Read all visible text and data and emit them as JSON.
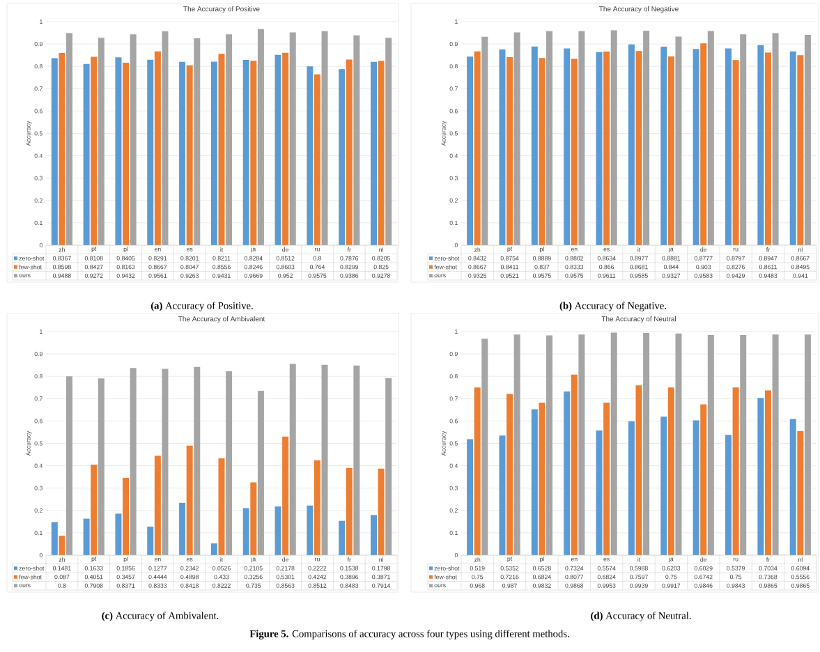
{
  "chart_data": [
    {
      "type": "bar",
      "title": "The Accuracy of Positive",
      "ylabel": "Accuracy",
      "categories": [
        "zh",
        "pt",
        "pl",
        "en",
        "es",
        "it",
        "ja",
        "de",
        "ru",
        "fr",
        "nl"
      ],
      "series": [
        {
          "name": "zero-shot",
          "color": "#5b9bd5",
          "values": [
            0.8367,
            0.8108,
            0.8405,
            0.8291,
            0.8201,
            0.8211,
            0.8284,
            0.8512,
            0.8,
            0.7876,
            0.8205
          ]
        },
        {
          "name": "few-shot",
          "color": "#ed7d31",
          "values": [
            0.8598,
            0.8427,
            0.8163,
            0.8667,
            0.8047,
            0.8556,
            0.8246,
            0.8603,
            0.764,
            0.8299,
            0.825
          ]
        },
        {
          "name": "ours",
          "color": "#a5a5a5",
          "values": [
            0.9488,
            0.9272,
            0.9432,
            0.9561,
            0.9263,
            0.9431,
            0.9669,
            0.952,
            0.9575,
            0.9386,
            0.9278
          ]
        }
      ],
      "ylim": [
        0,
        1
      ],
      "yticks": [
        0,
        0.1,
        0.2,
        0.3,
        0.4,
        0.5,
        0.6,
        0.7,
        0.8,
        0.9,
        1
      ],
      "grid": "y",
      "legend": "bottom",
      "data_labels": true,
      "annotations": [
        "**(a)** Accuracy of Positive."
      ]
    },
    {
      "type": "bar",
      "title": "The Accuracy of Negative",
      "ylabel": "Accuracy",
      "categories": [
        "zh",
        "pt",
        "pl",
        "en",
        "es",
        "it",
        "ja",
        "de",
        "ru",
        "fr",
        "nl"
      ],
      "series": [
        {
          "name": "zero-shot",
          "color": "#5b9bd5",
          "values": [
            0.8432,
            0.8754,
            0.8889,
            0.8802,
            0.8634,
            0.8977,
            0.8881,
            0.8777,
            0.8797,
            0.8947,
            0.8667
          ]
        },
        {
          "name": "few-shot",
          "color": "#ed7d31",
          "values": [
            0.8667,
            0.8411,
            0.837,
            0.8333,
            0.866,
            0.8681,
            0.844,
            0.903,
            0.8276,
            0.8611,
            0.8495
          ]
        },
        {
          "name": "ours",
          "color": "#a5a5a5",
          "values": [
            0.9325,
            0.9521,
            0.9575,
            0.9575,
            0.9611,
            0.9585,
            0.9327,
            0.9583,
            0.9429,
            0.9483,
            0.941
          ]
        }
      ],
      "ylim": [
        0,
        1
      ],
      "yticks": [
        0,
        0.1,
        0.2,
        0.3,
        0.4,
        0.5,
        0.6,
        0.7,
        0.8,
        0.9,
        1
      ],
      "grid": "y",
      "legend": "bottom",
      "data_labels": true,
      "annotations": [
        "**(b)** Accuracy of Negative."
      ]
    },
    {
      "type": "bar",
      "title": "The Accuracy of Ambivalent",
      "ylabel": "Accuracy",
      "categories": [
        "zh",
        "pt",
        "pl",
        "en",
        "es",
        "it",
        "ja",
        "de",
        "ru",
        "fr",
        "nl"
      ],
      "series": [
        {
          "name": "zero-shot",
          "color": "#5b9bd5",
          "values": [
            0.1481,
            0.1633,
            0.1856,
            0.1277,
            0.2342,
            0.0526,
            0.2105,
            0.2178,
            0.2222,
            0.1538,
            0.1798
          ]
        },
        {
          "name": "few-shot",
          "color": "#ed7d31",
          "values": [
            0.087,
            0.4051,
            0.3457,
            0.4444,
            0.4898,
            0.433,
            0.3256,
            0.5301,
            0.4242,
            0.3896,
            0.3871
          ]
        },
        {
          "name": "ours",
          "color": "#a5a5a5",
          "values": [
            0.8,
            0.7908,
            0.8371,
            0.8333,
            0.8418,
            0.8222,
            0.735,
            0.8563,
            0.8512,
            0.8483,
            0.7914
          ]
        }
      ],
      "ylim": [
        0,
        1
      ],
      "yticks": [
        0,
        0.1,
        0.2,
        0.3,
        0.4,
        0.5,
        0.6,
        0.7,
        0.8,
        0.9,
        1
      ],
      "grid": "y",
      "legend": "bottom",
      "data_labels": true,
      "annotations": [
        "**(c)** Accuracy of Ambivalent."
      ]
    },
    {
      "type": "bar",
      "title": "The Accuracy of Neutral",
      "ylabel": "Accuracy",
      "categories": [
        "zh",
        "pt",
        "pl",
        "en",
        "es",
        "it",
        "ja",
        "de",
        "ru",
        "fr",
        "nl"
      ],
      "series": [
        {
          "name": "zero-shot",
          "color": "#5b9bd5",
          "values": [
            0.519,
            0.5352,
            0.6528,
            0.7324,
            0.5574,
            0.5988,
            0.6203,
            0.6029,
            0.5379,
            0.7034,
            0.6094
          ]
        },
        {
          "name": "few-shot",
          "color": "#ed7d31",
          "values": [
            0.75,
            0.7216,
            0.6824,
            0.8077,
            0.6824,
            0.7597,
            0.75,
            0.6742,
            0.75,
            0.7368,
            0.5556
          ]
        },
        {
          "name": "ours",
          "color": "#a5a5a5",
          "values": [
            0.968,
            0.987,
            0.9832,
            0.9868,
            0.9953,
            0.9939,
            0.9917,
            0.9846,
            0.9843,
            0.9865,
            0.9865
          ]
        }
      ],
      "ylim": [
        0,
        1
      ],
      "yticks": [
        0,
        0.1,
        0.2,
        0.3,
        0.4,
        0.5,
        0.6,
        0.7,
        0.8,
        0.9,
        1
      ],
      "grid": "y",
      "legend": "bottom",
      "data_labels": true,
      "annotations": [
        "**(d)** Accuracy of Neutral.",
        "**Figure 5.** Comparisons of accuracy across four types using different methods."
      ]
    }
  ]
}
